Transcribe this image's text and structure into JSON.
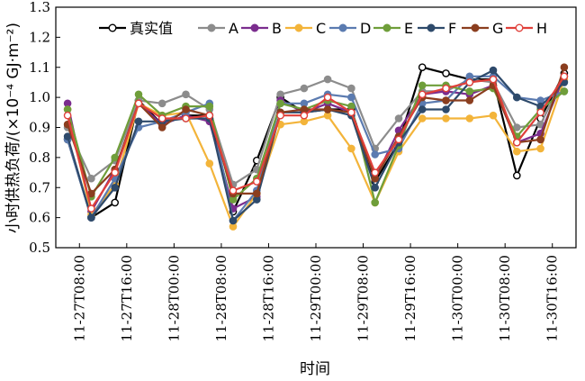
{
  "chart_data": {
    "type": "line",
    "xlabel": "时间",
    "ylabel": "小时供热负荷/(×10⁻⁴ GJ·m⁻²)",
    "ylim": [
      0.5,
      1.3
    ],
    "yticks": [
      0.5,
      0.6,
      0.7,
      0.8,
      0.9,
      1.0,
      1.1,
      1.2,
      1.3
    ],
    "xtick_labels": [
      "11-27T08:00",
      "11-27T16:00",
      "11-28T00:00",
      "11-28T08:00",
      "11-28T16:00",
      "11-29T00:00",
      "11-29T08:00",
      "11-29T16:00",
      "11-30T00:00",
      "11-30T08:00",
      "11-30T16:00"
    ],
    "x": [
      "11-27T06:00",
      "11-27T10:00",
      "11-27T14:00",
      "11-27T18:00",
      "11-27T22:00",
      "11-28T02:00",
      "11-28T06:00",
      "11-28T10:00",
      "11-28T14:00",
      "11-28T18:00",
      "11-28T22:00",
      "11-29T02:00",
      "11-29T06:00",
      "11-29T10:00",
      "11-29T14:00",
      "11-29T18:00",
      "11-29T22:00",
      "11-30T02:00",
      "11-30T06:00",
      "11-30T10:00",
      "11-30T14:00",
      "11-30T18:00"
    ],
    "legend_position": "top",
    "grid": false,
    "series": [
      {
        "name": "真实值",
        "color": "#000000",
        "values": [
          0.86,
          0.6,
          0.65,
          0.99,
          0.91,
          0.94,
          0.94,
          0.62,
          0.79,
          1.0,
          0.95,
          0.96,
          0.96,
          0.72,
          0.85,
          1.1,
          1.08,
          1.06,
          1.06,
          0.74,
          0.93,
          1.08
        ]
      },
      {
        "name": "A",
        "color": "#8c8c8c",
        "values": [
          0.9,
          0.73,
          0.79,
          0.99,
          0.98,
          1.01,
          0.96,
          0.71,
          0.76,
          1.01,
          1.03,
          1.06,
          1.03,
          0.83,
          0.93,
          1.02,
          1.02,
          1.06,
          1.05,
          0.9,
          0.91,
          1.07
        ]
      },
      {
        "name": "B",
        "color": "#7b2d8e",
        "values": [
          0.98,
          0.62,
          0.76,
          0.98,
          0.91,
          0.94,
          0.92,
          0.63,
          0.67,
          0.99,
          0.95,
          0.98,
          0.95,
          0.73,
          0.89,
          1.01,
          1.02,
          1.01,
          1.04,
          0.85,
          0.88,
          1.07
        ]
      },
      {
        "name": "C",
        "color": "#f3b43a",
        "values": [
          0.96,
          0.61,
          0.71,
          0.98,
          0.94,
          0.95,
          0.78,
          0.57,
          0.68,
          0.91,
          0.92,
          0.94,
          0.83,
          0.65,
          0.82,
          0.93,
          0.93,
          0.93,
          0.94,
          0.82,
          0.83,
          1.06
        ]
      },
      {
        "name": "D",
        "color": "#5b7bb0",
        "values": [
          0.86,
          0.6,
          0.73,
          0.9,
          0.92,
          0.95,
          0.98,
          0.59,
          0.69,
          0.98,
          0.98,
          1.01,
          1.0,
          0.81,
          0.83,
          0.98,
          0.99,
          1.07,
          1.07,
          1.0,
          0.99,
          1.02
        ]
      },
      {
        "name": "E",
        "color": "#6f9e3a",
        "values": [
          0.96,
          0.67,
          0.8,
          1.01,
          0.94,
          0.97,
          0.97,
          0.66,
          0.73,
          0.98,
          0.96,
          0.99,
          0.97,
          0.65,
          0.84,
          1.04,
          1.04,
          1.02,
          1.03,
          0.87,
          0.96,
          1.02
        ]
      },
      {
        "name": "F",
        "color": "#2e4a6b",
        "values": [
          0.87,
          0.6,
          0.7,
          0.92,
          0.92,
          0.93,
          0.93,
          0.59,
          0.66,
          0.95,
          0.95,
          0.96,
          0.94,
          0.7,
          0.85,
          0.96,
          0.96,
          1.05,
          1.09,
          1.0,
          0.97,
          1.05
        ]
      },
      {
        "name": "G",
        "color": "#8b3e1f",
        "values": [
          0.91,
          0.68,
          0.76,
          0.98,
          0.9,
          0.96,
          0.94,
          0.68,
          0.68,
          0.95,
          0.96,
          0.96,
          0.95,
          0.73,
          0.87,
          1.0,
          0.99,
          0.99,
          1.04,
          0.85,
          0.86,
          1.1
        ]
      },
      {
        "name": "H",
        "color": "#e0403a",
        "values": [
          0.94,
          0.63,
          0.75,
          0.98,
          0.93,
          0.93,
          0.94,
          0.69,
          0.72,
          0.94,
          0.94,
          1.0,
          0.95,
          0.75,
          0.86,
          1.01,
          1.03,
          1.05,
          1.06,
          0.85,
          0.95,
          1.07
        ]
      }
    ]
  }
}
